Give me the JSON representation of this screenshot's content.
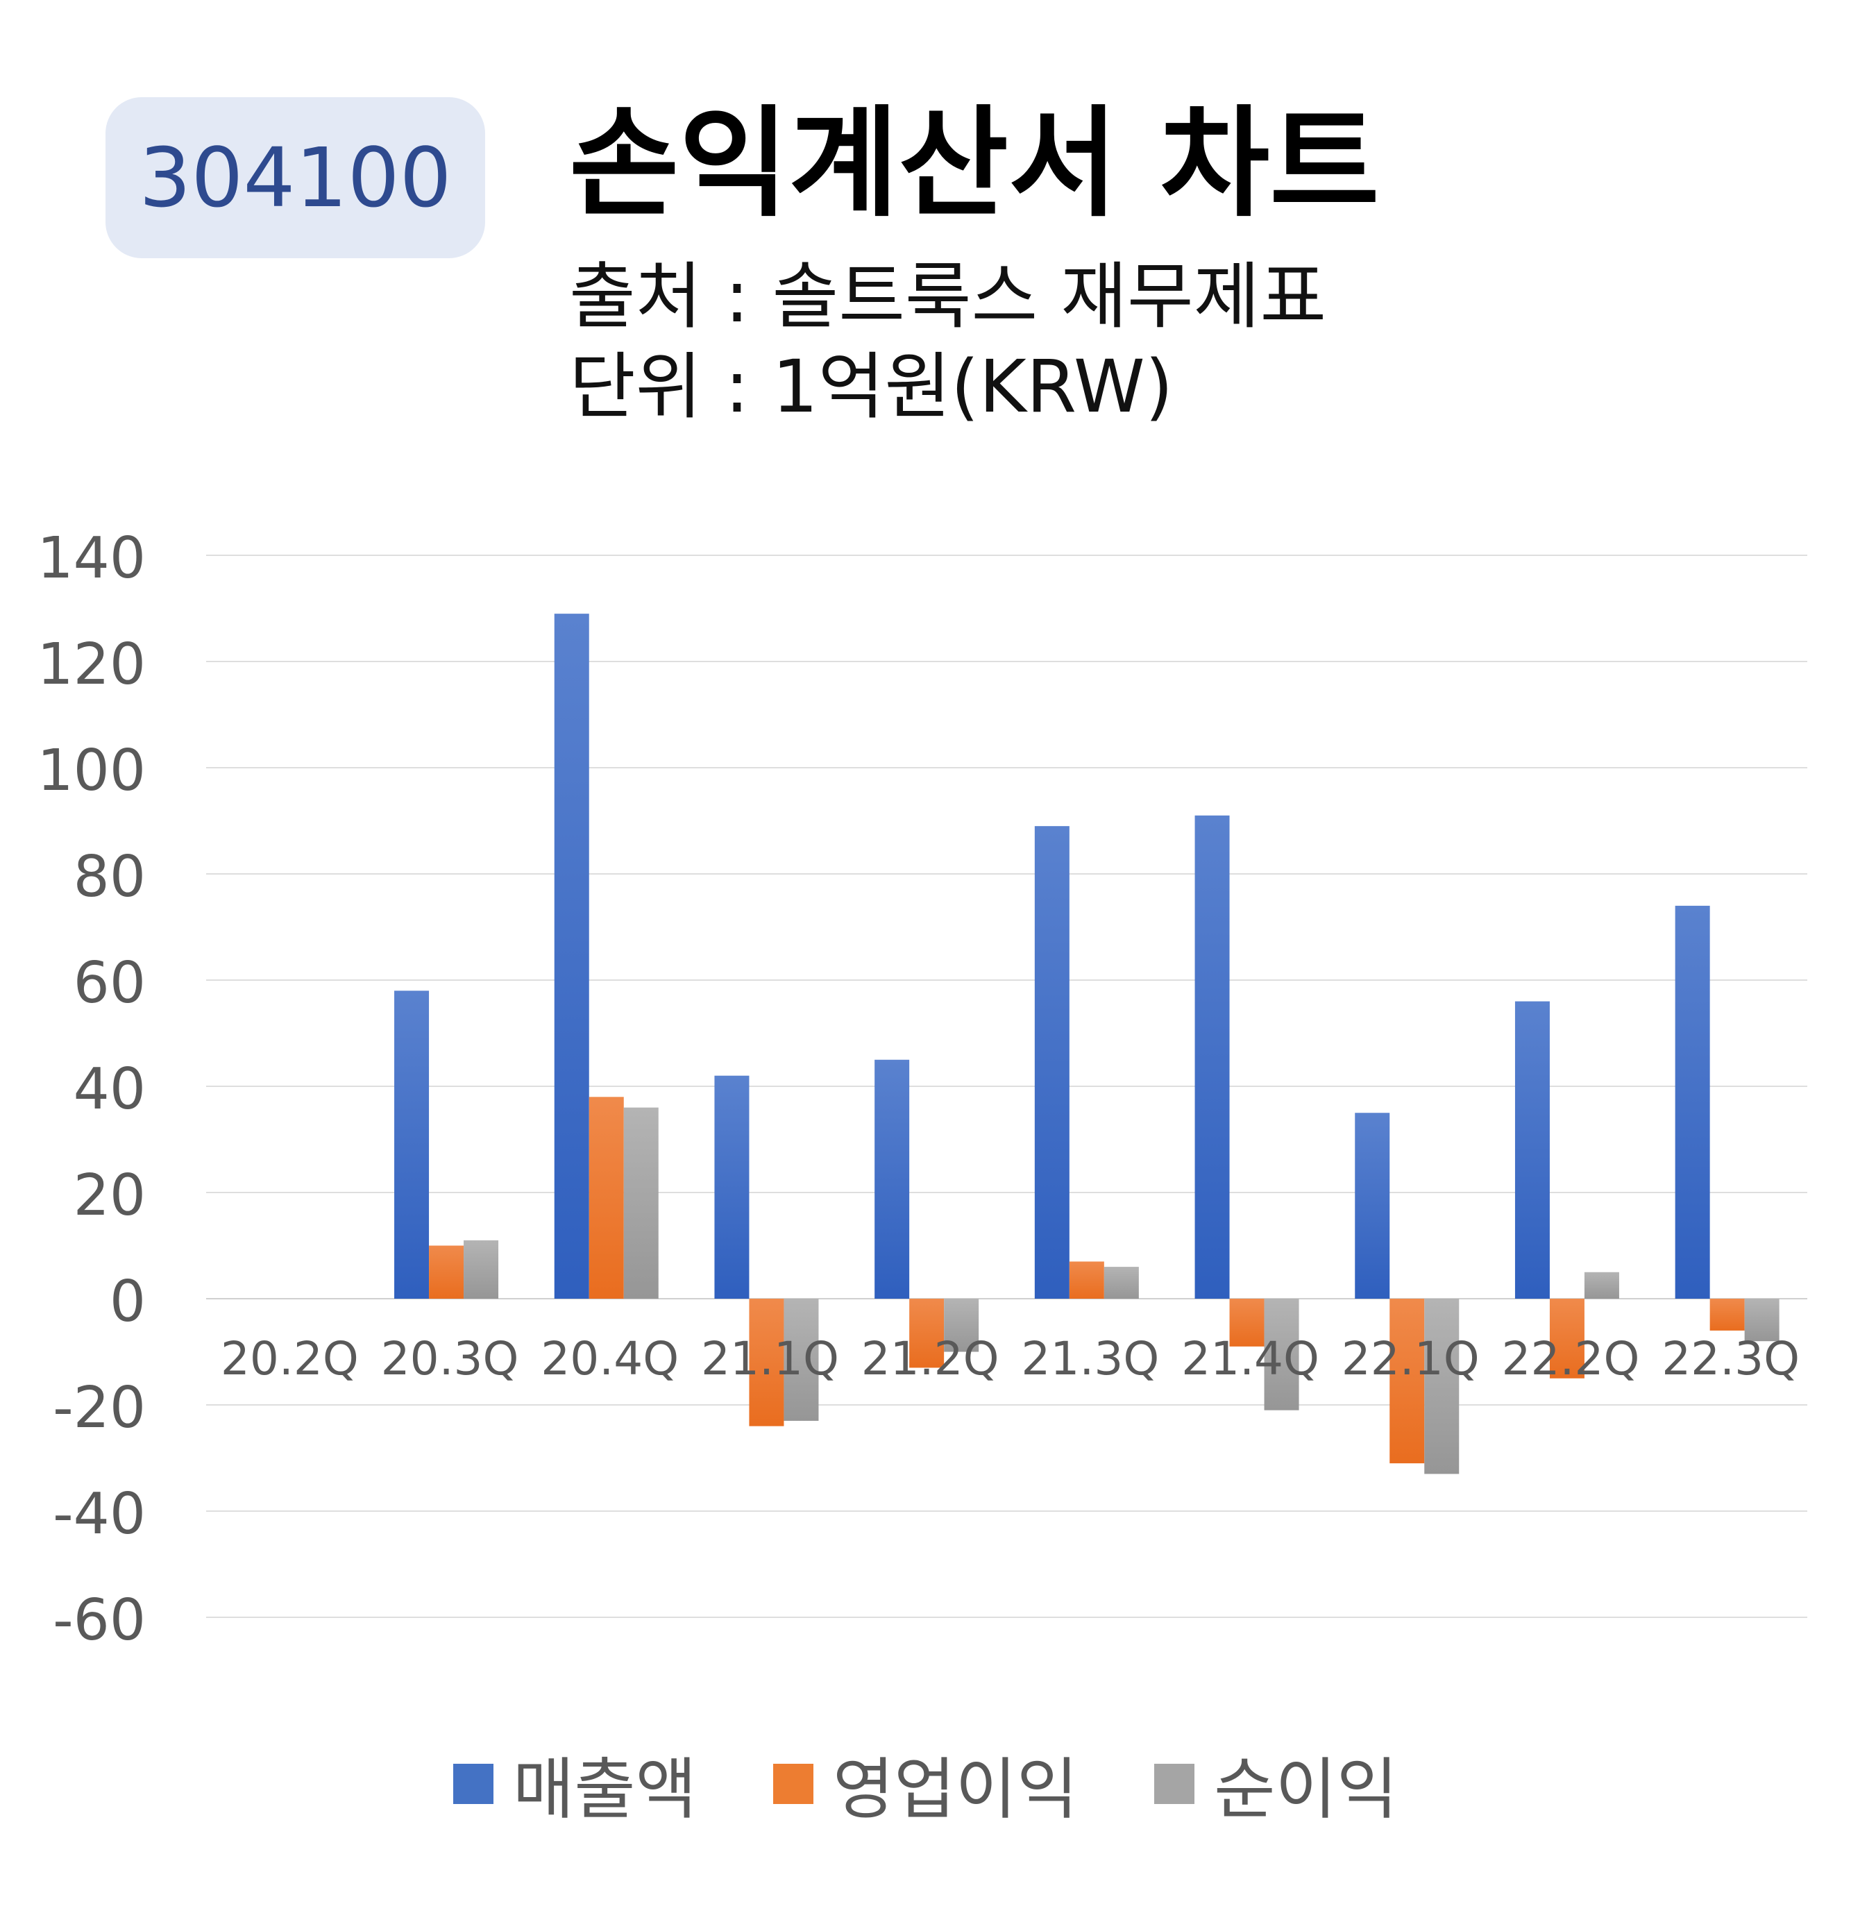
{
  "badge": "304100",
  "title": "손익계산서 차트",
  "source": "출처 : 솔트룩스 재무제표",
  "unit": "단위 : 1억원(KRW)",
  "chart_data": {
    "type": "bar",
    "categories": [
      "20.2Q",
      "20.3Q",
      "20.4Q",
      "21.1Q",
      "21.2Q",
      "21.3Q",
      "21.4Q",
      "22.1Q",
      "22.2Q",
      "22.3Q"
    ],
    "series": [
      {
        "name": "매출액",
        "color": "#4472c4",
        "values": [
          null,
          58,
          129,
          42,
          45,
          89,
          91,
          35,
          56,
          74
        ]
      },
      {
        "name": "영업이익",
        "color": "#ed7d31",
        "values": [
          null,
          10,
          38,
          -24,
          -13,
          7,
          -9,
          -31,
          -15,
          -6
        ]
      },
      {
        "name": "순이익",
        "color": "#a5a5a5",
        "values": [
          null,
          11,
          36,
          -23,
          -10,
          6,
          -21,
          -33,
          5,
          -8
        ]
      }
    ],
    "ylim": [
      -60,
      140
    ],
    "yticks": [
      140,
      120,
      100,
      80,
      60,
      40,
      20,
      0,
      -20,
      -40,
      -60
    ],
    "grid": true,
    "legend": "bottom"
  }
}
